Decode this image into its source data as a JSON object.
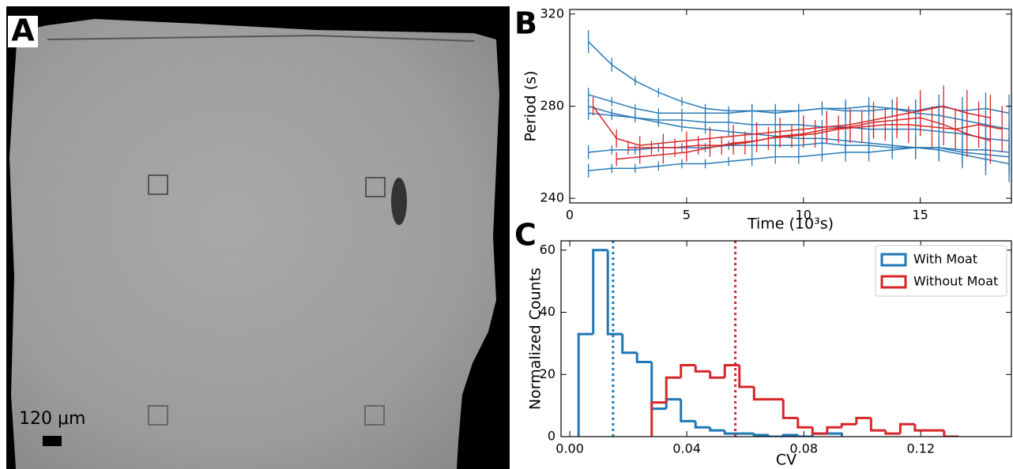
{
  "panel_a": {
    "label": "A",
    "scale_bar": "120 μm"
  },
  "chart_data": [
    {
      "type": "line",
      "panel_label": "B",
      "x_label": "Time (10³s)",
      "y_label": "Period (s)",
      "xlim": [
        0,
        18.9
      ],
      "xticks": [
        0,
        5,
        10,
        15
      ],
      "ylim": [
        238,
        322
      ],
      "yticks": [
        240,
        280,
        320
      ],
      "series": [
        {
          "color": "#2a7ab8",
          "x": [
            0.8,
            1.8,
            2.8,
            3.8,
            4.8,
            5.8,
            6.8,
            7.8,
            8.8,
            9.8,
            10.8,
            11.8,
            12.8,
            13.8,
            14.8,
            15.8,
            16.8,
            17.8,
            18.8
          ],
          "values": [
            308,
            298,
            291,
            286,
            282,
            279,
            278,
            278,
            277,
            278,
            279,
            278,
            278,
            279,
            277,
            276,
            274,
            272,
            270
          ],
          "errors": [
            5,
            3,
            2,
            2,
            2,
            2,
            2,
            3,
            3,
            3,
            3,
            4,
            4,
            4,
            5,
            5,
            6,
            7,
            8
          ]
        },
        {
          "color": "#2a7ab8",
          "x": [
            0.8,
            1.8,
            2.8,
            3.8,
            4.8,
            5.8,
            6.8,
            7.8,
            8.8,
            9.8,
            10.8,
            11.8,
            12.8,
            13.8,
            14.8,
            15.8,
            16.8,
            17.8,
            18.8
          ],
          "values": [
            285,
            282,
            279,
            277,
            277,
            277,
            277,
            278,
            278,
            278,
            279,
            279,
            280,
            279,
            278,
            280,
            278,
            279,
            277
          ],
          "errors": [
            3,
            2,
            2,
            2,
            2,
            2,
            2,
            3,
            3,
            3,
            3,
            4,
            4,
            4,
            5,
            5,
            6,
            7,
            8
          ]
        },
        {
          "color": "#2a7ab8",
          "x": [
            0.8,
            1.8,
            2.8,
            3.8,
            4.8,
            5.8,
            6.8,
            7.8,
            8.8,
            9.8,
            10.8,
            11.8,
            12.8,
            13.8,
            14.8,
            15.8,
            16.8,
            17.8,
            18.8
          ],
          "values": [
            280,
            277,
            275,
            273,
            271,
            270,
            269,
            268,
            267,
            266,
            266,
            265,
            264,
            263,
            262,
            262,
            260,
            259,
            258
          ],
          "errors": [
            3,
            2,
            2,
            2,
            2,
            2,
            2,
            3,
            3,
            3,
            3,
            4,
            4,
            4,
            5,
            5,
            6,
            7,
            8
          ]
        },
        {
          "color": "#2a7ab8",
          "x": [
            0.8,
            1.8,
            2.8,
            3.8,
            4.8,
            5.8,
            6.8,
            7.8,
            8.8,
            9.8,
            10.8,
            11.8,
            12.8,
            13.8,
            14.8,
            15.8,
            16.8,
            17.8,
            18.8
          ],
          "values": [
            277,
            276,
            275,
            274,
            274,
            273,
            273,
            272,
            272,
            272,
            271,
            271,
            270,
            270,
            270,
            269,
            268,
            266,
            265
          ],
          "errors": [
            3,
            2,
            2,
            2,
            2,
            2,
            2,
            3,
            3,
            3,
            3,
            4,
            4,
            4,
            5,
            5,
            6,
            7,
            8
          ]
        },
        {
          "color": "#2a7ab8",
          "x": [
            0.8,
            1.8,
            2.8,
            3.8,
            4.8,
            5.8,
            6.8,
            7.8,
            8.8,
            9.8,
            10.8,
            11.8,
            12.8,
            13.8,
            14.8,
            15.8,
            16.8,
            17.8,
            18.8
          ],
          "values": [
            260,
            261,
            261,
            262,
            262,
            262,
            263,
            263,
            263,
            263,
            264,
            263,
            263,
            262,
            262,
            261,
            259,
            257,
            255
          ],
          "errors": [
            3,
            2,
            2,
            2,
            2,
            2,
            2,
            3,
            3,
            3,
            3,
            4,
            4,
            4,
            5,
            5,
            6,
            7,
            8
          ]
        },
        {
          "color": "#2a7ab8",
          "x": [
            0.8,
            1.8,
            2.8,
            3.8,
            4.8,
            5.8,
            6.8,
            7.8,
            8.8,
            9.8,
            10.8,
            11.8,
            12.8,
            13.8,
            14.8,
            15.8,
            16.8,
            17.8,
            18.8
          ],
          "values": [
            252,
            253,
            253,
            254,
            255,
            255,
            256,
            257,
            258,
            258,
            259,
            260,
            260,
            261,
            262,
            262,
            261,
            261,
            260
          ],
          "errors": [
            3,
            2,
            2,
            2,
            2,
            2,
            2,
            3,
            3,
            3,
            3,
            4,
            4,
            4,
            5,
            5,
            6,
            7,
            8
          ]
        },
        {
          "color": "#d62728",
          "x": [
            1,
            2,
            3,
            4,
            5,
            6,
            7,
            8,
            9,
            10,
            11,
            12,
            13,
            14,
            15,
            16,
            17,
            18
          ],
          "values": [
            280,
            266,
            263,
            264,
            265,
            266,
            267,
            268,
            269,
            270,
            271,
            272,
            274,
            276,
            278,
            280,
            277,
            275
          ],
          "errors": [
            4,
            4,
            4,
            4,
            4,
            5,
            5,
            5,
            6,
            6,
            7,
            7,
            8,
            8,
            9,
            9,
            10,
            10
          ]
        },
        {
          "color": "#d62728",
          "x": [
            2,
            3,
            4,
            5,
            6,
            7,
            8,
            9,
            10,
            11,
            12,
            13,
            14,
            15,
            16,
            17,
            18
          ],
          "values": [
            257,
            258,
            259,
            260,
            262,
            264,
            265,
            267,
            268,
            270,
            271,
            273,
            274,
            275,
            272,
            268,
            265
          ],
          "errors": [
            3,
            3,
            4,
            4,
            4,
            5,
            5,
            5,
            6,
            6,
            7,
            7,
            8,
            8,
            9,
            10,
            10
          ]
        },
        {
          "color": "#d62728",
          "x": [
            2.5,
            3.5,
            4.5,
            5.5,
            6.5,
            7.5,
            8.5,
            9.5,
            10.5,
            11.5,
            12.5,
            13.5,
            14.5,
            15.5,
            16.5,
            17.5,
            18.5
          ],
          "values": [
            262,
            262,
            262,
            263,
            263,
            264,
            266,
            267,
            268,
            270,
            271,
            272,
            272,
            271,
            270,
            272,
            270
          ],
          "errors": [
            3,
            3,
            4,
            4,
            4,
            5,
            5,
            5,
            6,
            6,
            7,
            7,
            8,
            9,
            9,
            10,
            10
          ]
        }
      ]
    },
    {
      "type": "histogram",
      "panel_label": "C",
      "x_label": "CV",
      "y_label": "Normalized Counts",
      "xlim": [
        -0.003,
        0.151
      ],
      "xticks": [
        {
          "value": 0,
          "label": "0.00"
        },
        {
          "value": 0.04,
          "label": "0.04"
        },
        {
          "value": 0.08,
          "label": "0.08"
        },
        {
          "value": 0.12,
          "label": "0.12"
        }
      ],
      "ylim": [
        0,
        63
      ],
      "yticks": [
        0,
        20,
        40,
        60
      ],
      "legend": "upper right",
      "series": [
        {
          "name": "With Moat",
          "color": "#1f77b4",
          "mean": 0.0148,
          "bins": [
            0.003,
            0.008,
            0.013,
            0.018,
            0.023,
            0.028,
            0.033,
            0.038,
            0.043,
            0.048,
            0.053,
            0.058,
            0.063,
            0.068,
            0.073,
            0.078,
            0.083,
            0.088,
            0.093
          ],
          "counts": [
            33,
            60,
            33,
            27,
            24,
            9,
            12,
            5,
            3,
            2,
            1,
            1,
            0.5,
            0,
            0.5,
            0,
            1,
            1
          ]
        },
        {
          "name": "Without Moat",
          "color": "#d62728",
          "mean": 0.0566,
          "bins": [
            0.028,
            0.033,
            0.038,
            0.043,
            0.048,
            0.053,
            0.058,
            0.063,
            0.068,
            0.073,
            0.078,
            0.083,
            0.088,
            0.093,
            0.098,
            0.103,
            0.108,
            0.113,
            0.118,
            0.123,
            0.128,
            0.133
          ],
          "counts": [
            11,
            19,
            23,
            21,
            19,
            23,
            16,
            12,
            12,
            6,
            3,
            1,
            3,
            4,
            6,
            2,
            1,
            4,
            2,
            2,
            0
          ]
        }
      ]
    }
  ]
}
